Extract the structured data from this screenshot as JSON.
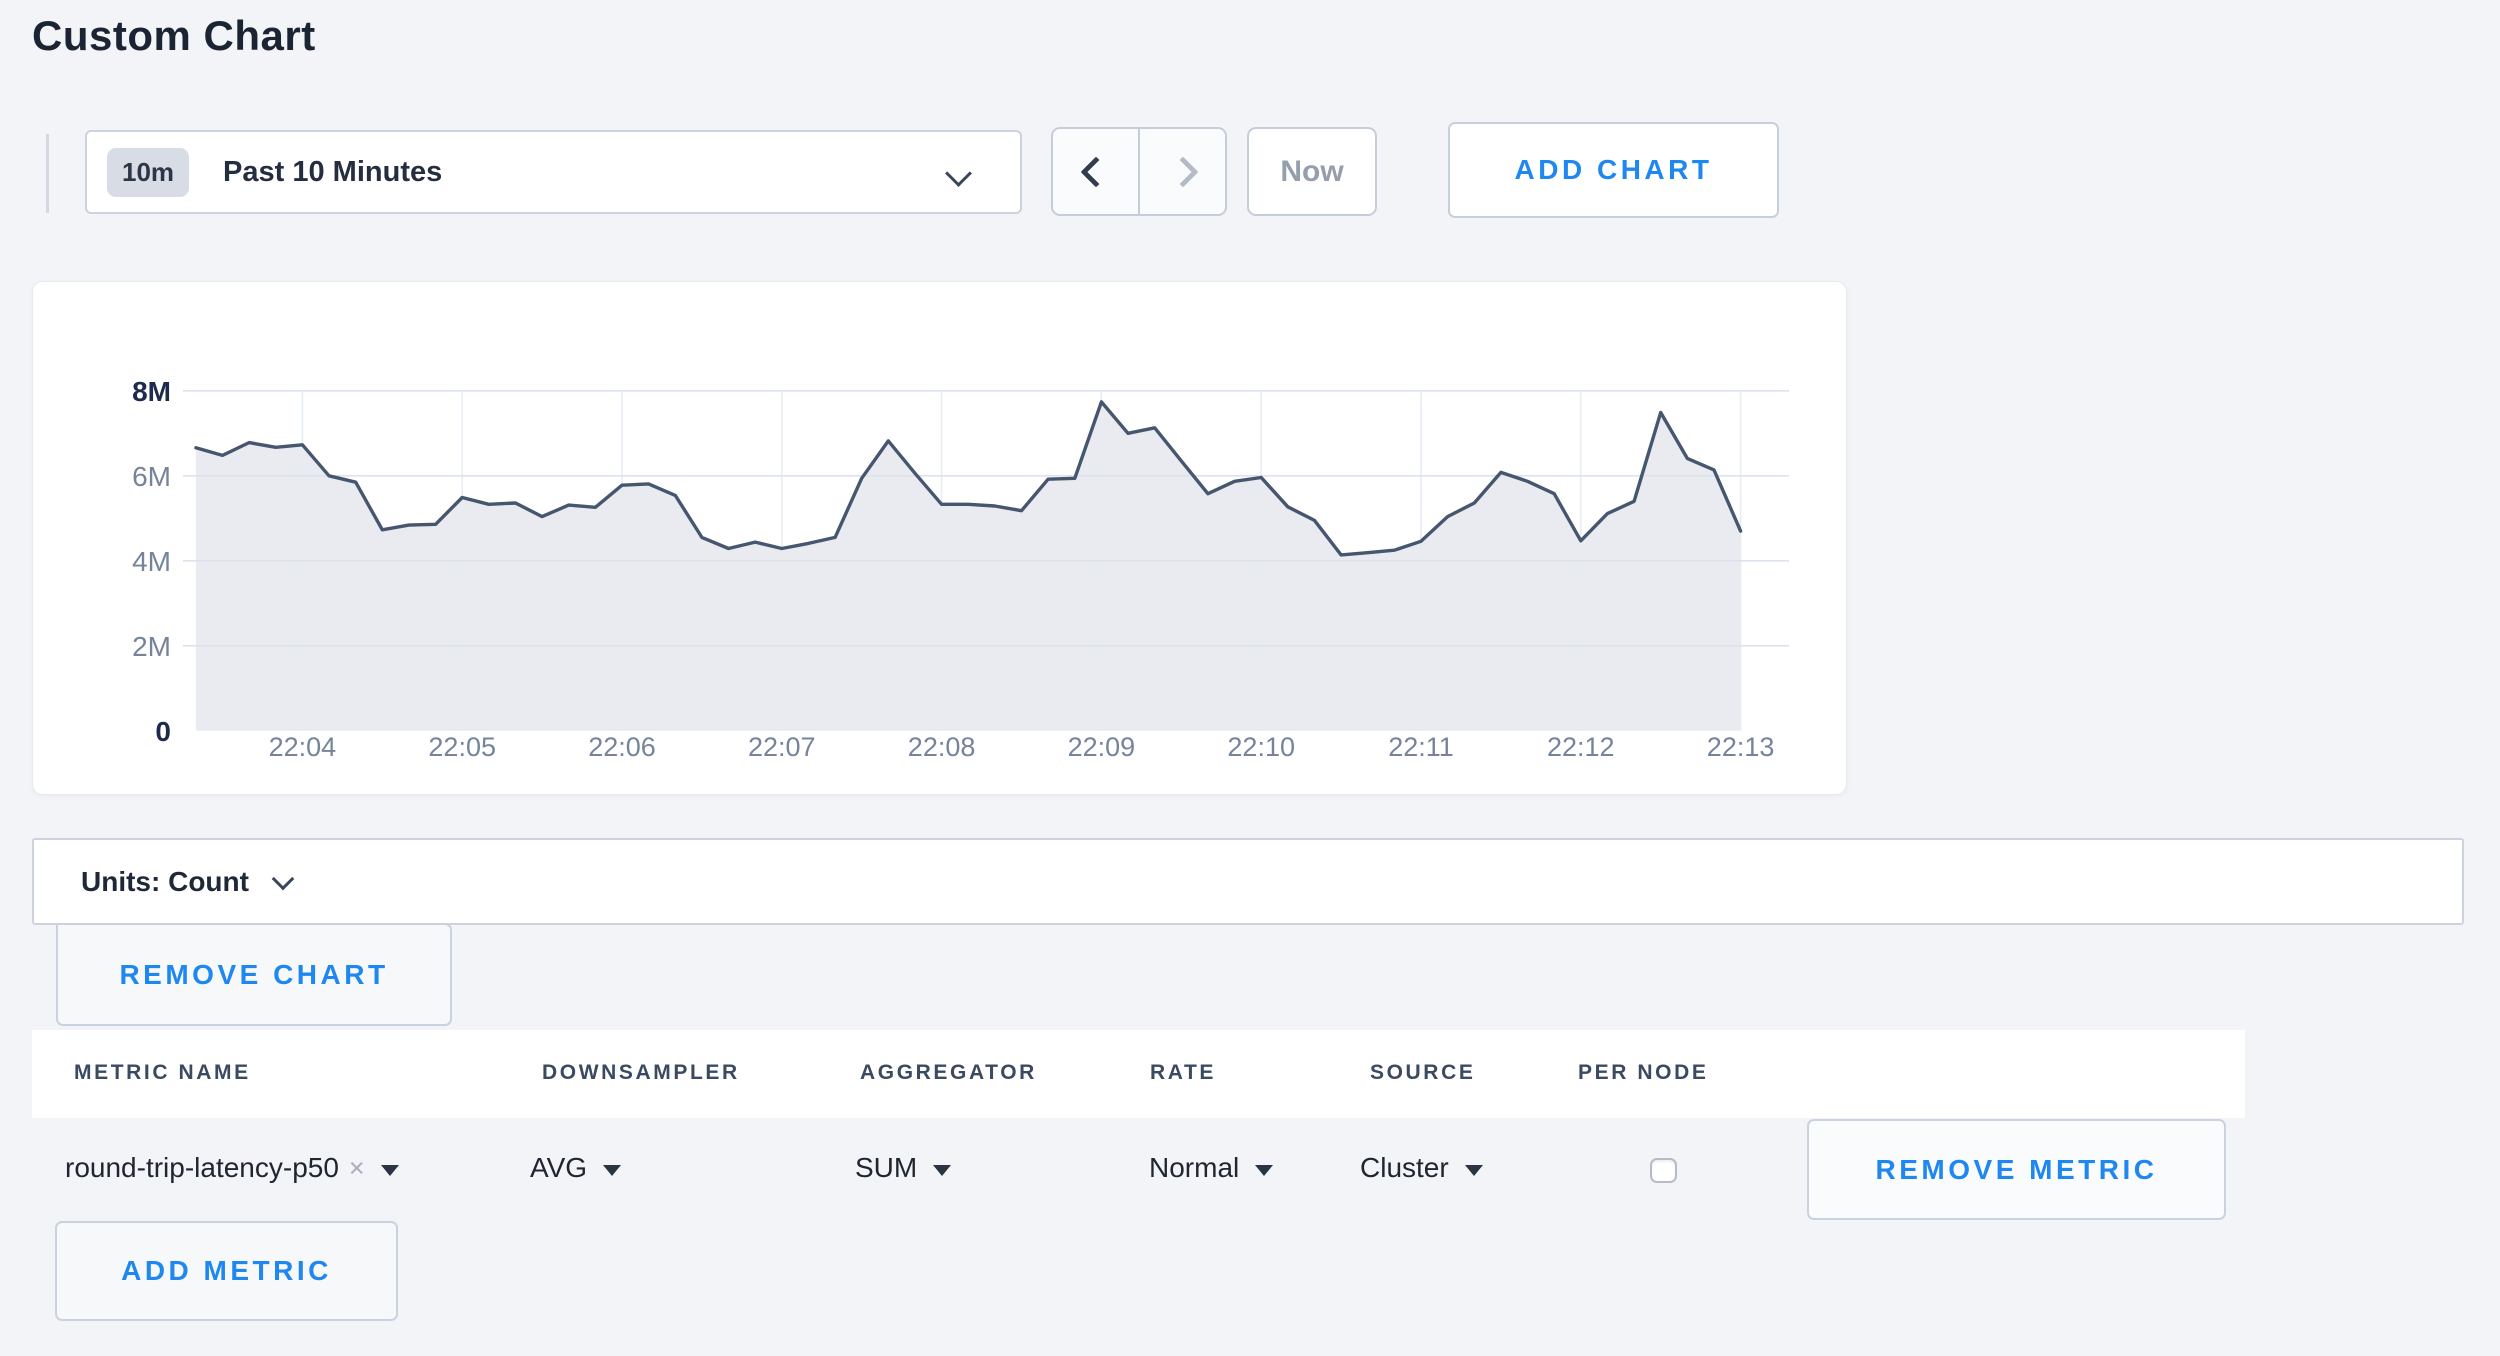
{
  "page": {
    "title": "Custom Chart"
  },
  "toolbar": {
    "time_range": {
      "badge": "10m",
      "label": "Past 10 Minutes"
    },
    "now_label": "Now",
    "add_chart_label": "ADD CHART"
  },
  "chart_data": {
    "type": "area",
    "title": "",
    "unit": "Count",
    "ylim": [
      0,
      8000000
    ],
    "grid": true,
    "y_tick_labels": [
      "8M",
      "6M",
      "4M",
      "2M",
      "0"
    ],
    "x_tick_labels": [
      "22:04",
      "22:05",
      "22:06",
      "22:07",
      "22:08",
      "22:09",
      "22:10",
      "22:11",
      "22:12",
      "22:13"
    ],
    "x_interval_seconds": 10,
    "x_times": [
      "22:03:20",
      "22:03:30",
      "22:03:40",
      "22:03:50",
      "22:04:00",
      "22:04:10",
      "22:04:20",
      "22:04:30",
      "22:04:40",
      "22:04:50",
      "22:05:00",
      "22:05:10",
      "22:05:20",
      "22:05:30",
      "22:05:40",
      "22:05:50",
      "22:06:00",
      "22:06:10",
      "22:06:20",
      "22:06:30",
      "22:06:40",
      "22:06:50",
      "22:07:00",
      "22:07:10",
      "22:07:20",
      "22:07:30",
      "22:07:40",
      "22:07:50",
      "22:08:00",
      "22:08:10",
      "22:08:20",
      "22:08:30",
      "22:08:40",
      "22:08:50",
      "22:09:00",
      "22:09:10",
      "22:09:20",
      "22:09:30",
      "22:09:40",
      "22:09:50",
      "22:10:00",
      "22:10:10",
      "22:10:20",
      "22:10:30",
      "22:10:40",
      "22:10:50",
      "22:11:00",
      "22:11:10",
      "22:11:20",
      "22:11:30",
      "22:11:40",
      "22:11:50",
      "22:12:00",
      "22:12:10",
      "22:12:20",
      "22:12:30",
      "22:12:40",
      "22:12:50",
      "22:13:00"
    ],
    "values_millions": [
      6.66,
      6.48,
      6.78,
      6.67,
      6.73,
      6.0,
      5.85,
      4.73,
      4.84,
      4.86,
      5.49,
      5.33,
      5.36,
      5.04,
      5.31,
      5.26,
      5.78,
      5.81,
      5.54,
      4.55,
      4.29,
      4.44,
      4.29,
      4.41,
      4.55,
      5.94,
      6.82,
      6.06,
      5.33,
      5.33,
      5.29,
      5.18,
      5.92,
      5.94,
      7.74,
      7.0,
      7.13,
      6.35,
      5.58,
      5.87,
      5.96,
      5.27,
      4.95,
      4.14,
      4.19,
      4.25,
      4.46,
      5.04,
      5.36,
      6.08,
      5.87,
      5.58,
      4.47,
      5.11,
      5.4,
      7.49,
      6.41,
      6.14,
      4.7
    ]
  },
  "units_bar": {
    "label": "Units: Count"
  },
  "remove_chart_label": "REMOVE CHART",
  "metrics_table": {
    "columns": [
      "METRIC NAME",
      "DOWNSAMPLER",
      "AGGREGATOR",
      "RATE",
      "SOURCE",
      "PER NODE"
    ],
    "rows": [
      {
        "metric_name": "round-trip-latency-p50",
        "clear_icon": "×",
        "downsampler": "AVG",
        "aggregator": "SUM",
        "rate": "Normal",
        "source": "Cluster",
        "per_node_checked": false,
        "remove_label": "REMOVE METRIC"
      }
    ],
    "add_metric_label": "ADD METRIC"
  },
  "colors": {
    "accent_blue": "#1f87f0",
    "page_background": "#f3f4f7",
    "chart_line": "#46566e",
    "chart_fill": "#e9ebf0",
    "grid_vertical": "#e8ecf3",
    "grid_horizontal": "#dde3ed",
    "tick_muted": "#76849b",
    "tick_strong": "#1d2b4a"
  }
}
